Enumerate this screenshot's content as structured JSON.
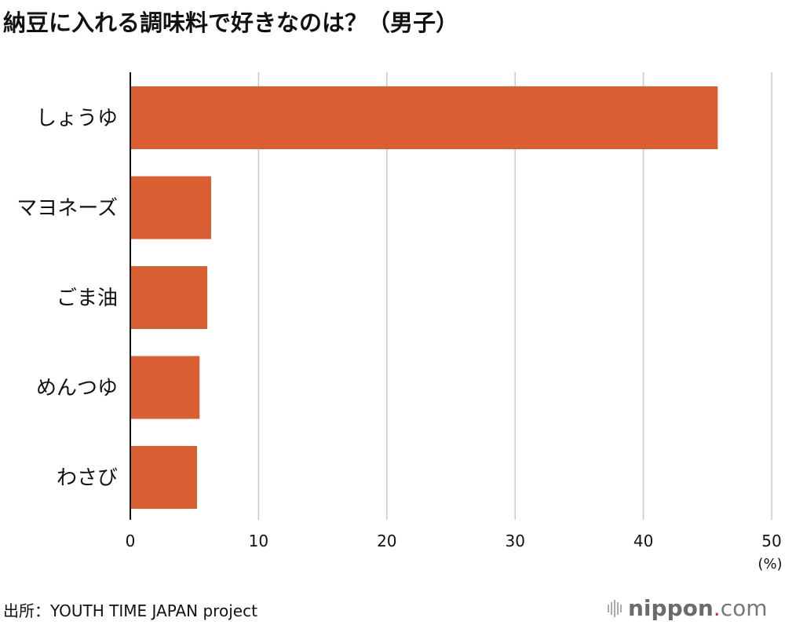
{
  "chart_data": {
    "type": "bar",
    "orientation": "horizontal",
    "title": "納豆に入れる調味料で好きなのは？（男子）",
    "categories": [
      "しょうゆ",
      "マヨネーズ",
      "ごま油",
      "めんつゆ",
      "わさび"
    ],
    "values": [
      45.8,
      6.3,
      6.0,
      5.4,
      5.2
    ],
    "xlabel": "(%)",
    "ylabel": "",
    "xlim": [
      0,
      50
    ],
    "xticks": [
      "0",
      "10",
      "20",
      "30",
      "40",
      "50"
    ],
    "grid": "vertical",
    "bar_color": "#D95F33"
  },
  "source": "出所：YOUTH TIME JAPAN project",
  "logo": {
    "brand": "nippon",
    "dot": ".",
    "tld": "com",
    "dot_color": "#E3242B"
  }
}
